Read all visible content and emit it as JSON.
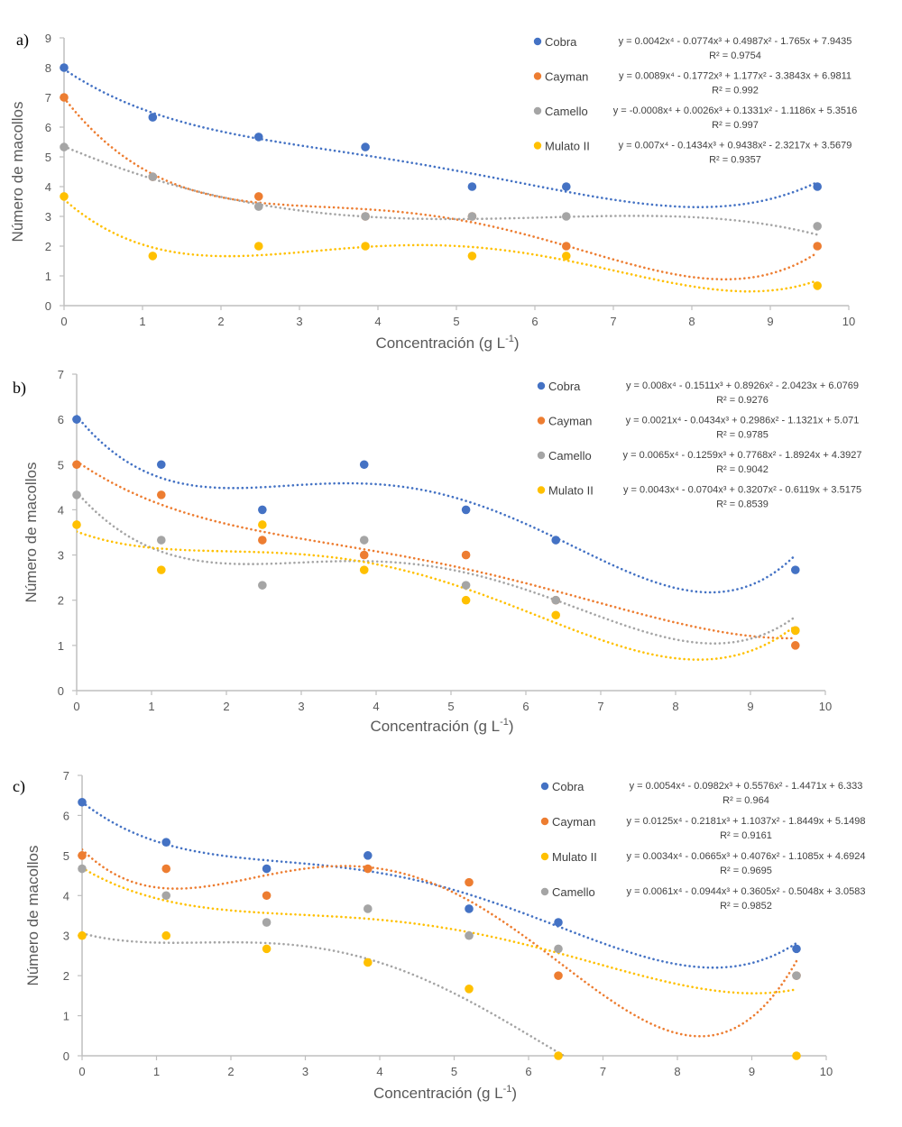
{
  "colors": {
    "Cobra": "#4472C4",
    "Cayman": "#ED7D31",
    "Camello": "#A5A5A5",
    "Mulato II": "#FFC000",
    "axis": "#BFBFBF"
  },
  "chart_data": [
    {
      "type": "scatter",
      "panel_label": "a)",
      "title": "",
      "xlabel": "Concentración (g L-1)",
      "xlabel_main": "Concentración (g L",
      "xlabel_sup": "-1",
      "xlabel_end": ")",
      "ylabel": "Número de macollos",
      "xlim": [
        0,
        10
      ],
      "ylim": [
        0,
        9
      ],
      "xticks": [
        "0",
        "1",
        "2",
        "3",
        "4",
        "5",
        "6",
        "7",
        "8",
        "9",
        "10"
      ],
      "yticks": [
        "0",
        "1",
        "2",
        "3",
        "4",
        "5",
        "6",
        "7",
        "8",
        "9"
      ],
      "grid": false,
      "legend_position": "top-right",
      "x": [
        0,
        1.13,
        2.48,
        3.84,
        5.2,
        6.4,
        9.6
      ],
      "series": [
        {
          "name": "Cobra",
          "values": [
            8,
            6.33,
            5.67,
            5.33,
            4,
            4,
            4
          ],
          "trendline": {
            "type": "polynomial",
            "order": 4,
            "coefficients": [
              0.0042,
              -0.0774,
              0.4987,
              -1.765,
              7.9435
            ],
            "equation": "y = 0.0042x⁴ - 0.0774x³ + 0.4987x² - 1.765x + 7.9435",
            "r2": "R² = 0.9754"
          }
        },
        {
          "name": "Cayman",
          "values": [
            7,
            4.33,
            3.67,
            3,
            3,
            2,
            2
          ],
          "trendline": {
            "type": "polynomial",
            "order": 4,
            "coefficients": [
              0.0089,
              -0.1772,
              1.177,
              -3.3843,
              6.9811
            ],
            "equation": "y = 0.0089x⁴ - 0.1772x³ + 1.177x² - 3.3843x + 6.9811",
            "r2": "R² = 0.992"
          }
        },
        {
          "name": "Camello",
          "values": [
            5.33,
            4.33,
            3.33,
            3,
            3,
            3,
            2.67
          ],
          "trendline": {
            "type": "polynomial",
            "order": 4,
            "coefficients": [
              -0.0008,
              0.0026,
              0.1331,
              -1.1186,
              5.3516
            ],
            "equation": "y = -0.0008x⁴ + 0.0026x³ + 0.1331x² - 1.1186x + 5.3516",
            "r2": "R² = 0.997"
          }
        },
        {
          "name": "Mulato II",
          "values": [
            3.67,
            1.67,
            2,
            2,
            1.67,
            1.67,
            0.67
          ],
          "trendline": {
            "type": "polynomial",
            "order": 4,
            "coefficients": [
              0.007,
              -0.1434,
              0.9438,
              -2.3217,
              3.5679
            ],
            "equation": "y = 0.007x⁴ - 0.1434x³ + 0.9438x² - 2.3217x + 3.5679",
            "r2": "R² = 0.9357"
          }
        }
      ]
    },
    {
      "type": "scatter",
      "panel_label": "b)",
      "title": "",
      "xlabel": "Concentración (g L-1)",
      "xlabel_main": "Concentración (g L",
      "xlabel_sup": "-1",
      "xlabel_end": ")",
      "ylabel": "Número de macollos",
      "xlim": [
        0,
        10
      ],
      "ylim": [
        0,
        7
      ],
      "xticks": [
        "0",
        "1",
        "2",
        "3",
        "4",
        "5",
        "6",
        "7",
        "8",
        "9",
        "10"
      ],
      "yticks": [
        "0",
        "1",
        "2",
        "3",
        "4",
        "5",
        "6",
        "7"
      ],
      "grid": false,
      "legend_position": "top-right",
      "x": [
        0,
        1.13,
        2.48,
        3.84,
        5.2,
        6.4,
        9.6
      ],
      "series": [
        {
          "name": "Cobra",
          "values": [
            6,
            5,
            4,
            5,
            4,
            3.33,
            2.67
          ],
          "trendline": {
            "type": "polynomial",
            "order": 4,
            "coefficients": [
              0.008,
              -0.1511,
              0.8926,
              -2.0423,
              6.0769
            ],
            "equation": "y = 0.008x⁴ - 0.1511x³ + 0.8926x² - 2.0423x + 6.0769",
            "r2": "R² = 0.9276"
          }
        },
        {
          "name": "Cayman",
          "values": [
            5,
            4.33,
            3.33,
            3,
            3,
            2,
            1
          ],
          "trendline": {
            "type": "polynomial",
            "order": 4,
            "coefficients": [
              0.0021,
              -0.0434,
              0.2986,
              -1.1321,
              5.071
            ],
            "equation": "y = 0.0021x⁴ - 0.0434x³ + 0.2986x² - 1.1321x + 5.071",
            "r2": "R² = 0.9785"
          }
        },
        {
          "name": "Camello",
          "values": [
            4.33,
            3.33,
            2.33,
            3.33,
            2.33,
            2,
            1.33
          ],
          "trendline": {
            "type": "polynomial",
            "order": 4,
            "coefficients": [
              0.0065,
              -0.1259,
              0.7768,
              -1.8924,
              4.3927
            ],
            "equation": "y = 0.0065x⁴ - 0.1259x³ + 0.7768x² - 1.8924x + 4.3927",
            "r2": "R² = 0.9042"
          }
        },
        {
          "name": "Mulato II",
          "values": [
            3.67,
            2.67,
            3.67,
            2.67,
            2,
            1.67,
            1.33
          ],
          "trendline": {
            "type": "polynomial",
            "order": 4,
            "coefficients": [
              0.0043,
              -0.0704,
              0.3207,
              -0.6119,
              3.5175
            ],
            "equation": "y = 0.0043x⁴ - 0.0704x³ + 0.3207x² - 0.6119x + 3.5175",
            "r2": "R² = 0.8539"
          }
        }
      ]
    },
    {
      "type": "scatter",
      "panel_label": "c)",
      "title": "",
      "xlabel": "Concentración (g L-1)",
      "xlabel_main": "Concentración (g L",
      "xlabel_sup": "-1",
      "xlabel_end": ")",
      "ylabel": "Número de macollos",
      "xlim": [
        0,
        10
      ],
      "ylim": [
        0,
        7
      ],
      "xticks": [
        "0",
        "1",
        "2",
        "3",
        "4",
        "5",
        "6",
        "7",
        "8",
        "9",
        "10"
      ],
      "yticks": [
        "0",
        "1",
        "2",
        "3",
        "4",
        "5",
        "6",
        "7"
      ],
      "grid": false,
      "legend_position": "top-right",
      "x": [
        0,
        1.13,
        2.48,
        3.84,
        5.2,
        6.4,
        9.6
      ],
      "series": [
        {
          "name": "Cobra",
          "values": [
            6.33,
            5.33,
            4.67,
            5,
            3.67,
            3.33,
            2.67
          ],
          "trendline": {
            "type": "polynomial",
            "order": 4,
            "coefficients": [
              0.0054,
              -0.0982,
              0.5576,
              -1.4471,
              6.333
            ],
            "equation": "y = 0.0054x⁴ - 0.0982x³ + 0.5576x² - 1.4471x + 6.333",
            "r2": "R² = 0.964"
          }
        },
        {
          "name": "Cayman",
          "values": [
            5,
            4.67,
            4,
            4.67,
            4.33,
            2,
            2
          ],
          "trendline": {
            "type": "polynomial",
            "order": 4,
            "coefficients": [
              0.0125,
              -0.2181,
              1.1037,
              -1.8449,
              5.1498
            ],
            "equation": "y = 0.0125x⁴ - 0.2181x³ + 1.1037x² - 1.8449x + 5.1498",
            "r2": "R² = 0.9161"
          }
        },
        {
          "name": "Mulato II",
          "values": [
            3,
            3,
            2.67,
            2.33,
            1.67,
            0,
            0
          ],
          "trendline": {
            "type": "polynomial",
            "order": 4,
            "coefficients": [
              0.0034,
              -0.0665,
              0.4076,
              -1.1085,
              4.6924
            ],
            "equation": "y = 0.0034x⁴ - 0.0665x³ + 0.4076x² - 1.1085x + 4.6924",
            "r2": "R² = 0.9695"
          }
        },
        {
          "name": "Camello",
          "values": [
            4.67,
            4,
            3.33,
            3.67,
            3,
            2.67,
            2
          ],
          "trendline": {
            "type": "polynomial",
            "order": 4,
            "coefficients": [
              0.0061,
              -0.0944,
              0.3605,
              -0.5048,
              3.0583
            ],
            "equation": "y = 0.0061x⁴ - 0.0944x³ + 0.3605x² - 0.5048x + 3.0583",
            "r2": "R² = 0.9852"
          }
        }
      ]
    }
  ]
}
